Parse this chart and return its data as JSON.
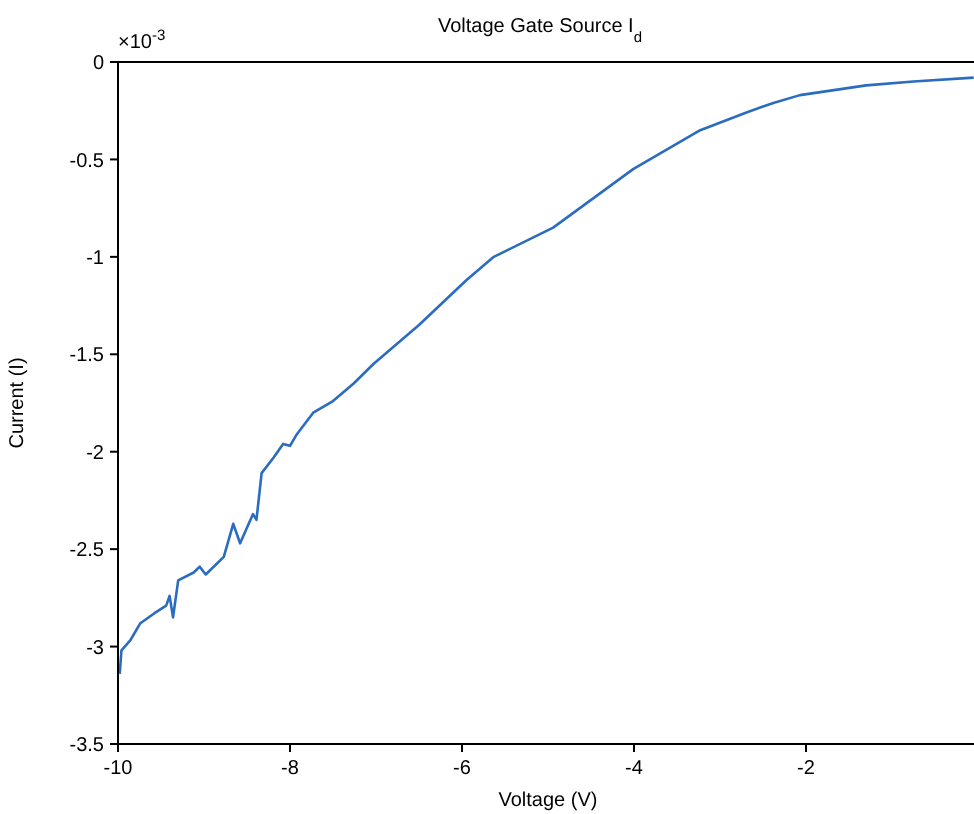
{
  "chart_data": {
    "type": "line",
    "title": "Voltage Gate Source I$_{d}$",
    "xlabel": "Voltage (V)",
    "ylabel": "Current (I)",
    "annotations": [
      "×10$^{-3}$"
    ],
    "xlim": [
      -10,
      0
    ],
    "xticks": [
      -10,
      -8,
      -6,
      -4,
      -2
    ],
    "ylim": [
      -3.5,
      0
    ],
    "yticks": [
      -3.5,
      -3,
      -2.5,
      -2,
      -1.5,
      -1,
      -0.5,
      0
    ],
    "grid": false,
    "legend": false,
    "marker": "none",
    "line_style": "solid",
    "series": [
      {
        "color": "#2a6cc0",
        "x": [
          -9.98,
          -9.96,
          -9.86,
          -9.74,
          -9.58,
          -9.44,
          -9.4,
          -9.36,
          -9.3,
          -9.12,
          -9.05,
          -8.98,
          -8.77,
          -8.66,
          -8.58,
          -8.43,
          -8.39,
          -8.33,
          -8.19,
          -8.08,
          -8,
          -7.92,
          -7.73,
          -7.5,
          -7.26,
          -7.03,
          -6.5,
          -5.95,
          -5.63,
          -4.94,
          -4.01,
          -3.23,
          -2.7,
          -2.38,
          -2.07,
          -1.3,
          -0.75,
          -0.05
        ],
        "values": [
          -3.14,
          -3.02,
          -2.97,
          -2.88,
          -2.83,
          -2.79,
          -2.74,
          -2.85,
          -2.66,
          -2.62,
          -2.59,
          -2.63,
          -2.54,
          -2.37,
          -2.47,
          -2.32,
          -2.35,
          -2.11,
          -2.03,
          -1.96,
          -1.97,
          -1.91,
          -1.8,
          -1.74,
          -1.65,
          -1.55,
          -1.35,
          -1.12,
          -1,
          -0.85,
          -0.55,
          -0.35,
          -0.26,
          -0.21,
          -0.17,
          -0.12,
          -0.1,
          -0.08
        ]
      }
    ]
  }
}
